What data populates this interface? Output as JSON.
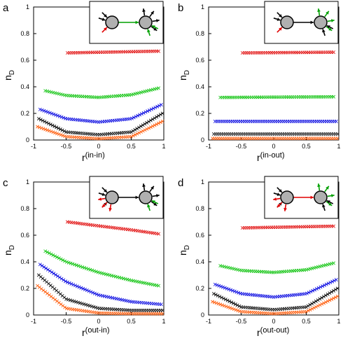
{
  "chart_data": [
    {
      "panel_label": "a",
      "type": "scatter",
      "ylabel": "n",
      "ylabel_sub": "D",
      "xlabel": "r",
      "xlabel_sup": "(in-in)",
      "xlim": [
        -1,
        1
      ],
      "ylim": [
        0,
        1
      ],
      "x_ticks": [
        "-1",
        "-0.5",
        "0",
        "0.5",
        "1"
      ],
      "y_ticks": [
        "0",
        "0.2",
        "0.4",
        "0.6",
        "0.8",
        "1"
      ],
      "series": [
        {
          "color": "#e00000",
          "x": [
            -0.48,
            0.92
          ],
          "y": [
            0.655,
            0.668
          ]
        },
        {
          "color": "#00c000",
          "x": [
            -0.82,
            -0.5,
            0,
            0.5,
            0.92
          ],
          "y": [
            0.37,
            0.335,
            0.32,
            0.34,
            0.39
          ]
        },
        {
          "color": "#0000e0",
          "x": [
            -0.9,
            -0.5,
            0,
            0.5,
            0.96
          ],
          "y": [
            0.23,
            0.16,
            0.135,
            0.16,
            0.265
          ]
        },
        {
          "color": "#000000",
          "x": [
            -0.92,
            -0.5,
            0,
            0.5,
            0.98
          ],
          "y": [
            0.16,
            0.06,
            0.04,
            0.06,
            0.2
          ]
        },
        {
          "color": "#ff5500",
          "x": [
            -0.94,
            -0.5,
            0,
            0.5,
            0.98
          ],
          "y": [
            0.1,
            0.025,
            0.01,
            0.025,
            0.14
          ]
        }
      ],
      "inset": {
        "in_colors": [
          "#e00000",
          "#000000",
          "#000000"
        ],
        "center_color": "#00a000",
        "out_colors": [
          "#000000",
          "#000000",
          "#000000",
          "#000000"
        ],
        "sink_colors": [
          "#00a000",
          "#00a000"
        ]
      }
    },
    {
      "panel_label": "b",
      "type": "scatter",
      "ylabel": "n",
      "ylabel_sub": "D",
      "xlabel": "r",
      "xlabel_sup": "(in-out)",
      "xlim": [
        -1,
        1
      ],
      "ylim": [
        0,
        1
      ],
      "x_ticks": [
        "-1",
        "-0.5",
        "0",
        "0.5",
        "1"
      ],
      "y_ticks": [
        "0",
        "0.2",
        "0.4",
        "0.6",
        "0.8",
        "1"
      ],
      "series": [
        {
          "color": "#e00000",
          "x": [
            -0.48,
            0.92
          ],
          "y": [
            0.655,
            0.66
          ]
        },
        {
          "color": "#00c000",
          "x": [
            -0.82,
            0.92
          ],
          "y": [
            0.32,
            0.325
          ]
        },
        {
          "color": "#0000e0",
          "x": [
            -0.9,
            0.96
          ],
          "y": [
            0.14,
            0.14
          ]
        },
        {
          "color": "#000000",
          "x": [
            -0.92,
            0.98
          ],
          "y": [
            0.045,
            0.045
          ]
        },
        {
          "color": "#ff5500",
          "x": [
            -0.94,
            0.98
          ],
          "y": [
            0.012,
            0.012
          ]
        }
      ],
      "inset": {
        "in_colors": [
          "#e00000",
          "#000000",
          "#000000"
        ],
        "center_color": "#000000",
        "out_colors": [
          "#00a000",
          "#00a000",
          "#00a000",
          "#00a000"
        ],
        "sink_colors": [
          "#000000",
          "#000000"
        ]
      }
    },
    {
      "panel_label": "c",
      "type": "scatter",
      "ylabel": "n",
      "ylabel_sub": "D",
      "xlabel": "r",
      "xlabel_sup": "(out-in)",
      "xlim": [
        -1,
        1
      ],
      "ylim": [
        0,
        1
      ],
      "x_ticks": [
        "-1",
        "-0.5",
        "0",
        "0.5",
        "1"
      ],
      "y_ticks": [
        "0",
        "0.2",
        "0.4",
        "0.6",
        "0.8",
        "1"
      ],
      "series": [
        {
          "color": "#e00000",
          "x": [
            -0.48,
            0,
            0.5,
            0.92
          ],
          "y": [
            0.7,
            0.67,
            0.64,
            0.61
          ]
        },
        {
          "color": "#00c000",
          "x": [
            -0.82,
            -0.5,
            0,
            0.5,
            0.92
          ],
          "y": [
            0.48,
            0.4,
            0.32,
            0.26,
            0.22
          ]
        },
        {
          "color": "#0000e0",
          "x": [
            -0.9,
            -0.5,
            0,
            0.5,
            0.96
          ],
          "y": [
            0.38,
            0.25,
            0.15,
            0.1,
            0.08
          ]
        },
        {
          "color": "#000000",
          "x": [
            -0.92,
            -0.5,
            0,
            0.5,
            0.98
          ],
          "y": [
            0.3,
            0.12,
            0.05,
            0.035,
            0.035
          ]
        },
        {
          "color": "#ff5500",
          "x": [
            -0.94,
            -0.5,
            0,
            0.5,
            0.98
          ],
          "y": [
            0.22,
            0.05,
            0.015,
            0.01,
            0.01
          ]
        }
      ],
      "inset": {
        "in_colors": [
          "#000000",
          "#000000",
          "#000000"
        ],
        "center_color": "#000000",
        "out_colors": [
          "#000000",
          "#000000",
          "#000000",
          "#000000"
        ],
        "sink_colors": [
          "#00a000",
          "#00a000"
        ],
        "source_out_colors": [
          "#e00000",
          "#e00000",
          "#e00000"
        ]
      }
    },
    {
      "panel_label": "d",
      "type": "scatter",
      "ylabel": "n",
      "ylabel_sub": "D",
      "xlabel": "r",
      "xlabel_sup": "(out-out)",
      "xlim": [
        -1,
        1
      ],
      "ylim": [
        0,
        1
      ],
      "x_ticks": [
        "-1",
        "-0.5",
        "0",
        "0.5",
        "1"
      ],
      "y_ticks": [
        "0",
        "0.2",
        "0.4",
        "0.6",
        "0.8",
        "1"
      ],
      "series": [
        {
          "color": "#e00000",
          "x": [
            -0.48,
            0.92
          ],
          "y": [
            0.655,
            0.668
          ]
        },
        {
          "color": "#00c000",
          "x": [
            -0.82,
            -0.5,
            0,
            0.5,
            0.92
          ],
          "y": [
            0.37,
            0.335,
            0.32,
            0.34,
            0.39
          ]
        },
        {
          "color": "#0000e0",
          "x": [
            -0.9,
            -0.5,
            0,
            0.5,
            0.96
          ],
          "y": [
            0.23,
            0.16,
            0.135,
            0.16,
            0.265
          ]
        },
        {
          "color": "#000000",
          "x": [
            -0.92,
            -0.5,
            0,
            0.5,
            0.98
          ],
          "y": [
            0.16,
            0.06,
            0.04,
            0.06,
            0.2
          ]
        },
        {
          "color": "#ff5500",
          "x": [
            -0.94,
            -0.5,
            0,
            0.5,
            0.98
          ],
          "y": [
            0.1,
            0.025,
            0.01,
            0.025,
            0.14
          ]
        }
      ],
      "inset": {
        "in_colors": [
          "#000000",
          "#000000",
          "#000000"
        ],
        "center_color": "#e00000",
        "out_colors": [
          "#00a000",
          "#00a000",
          "#00a000",
          "#00a000"
        ],
        "sink_colors": [
          "#000000",
          "#000000"
        ],
        "source_out_colors": [
          "#e00000",
          "#e00000",
          "#e00000"
        ]
      }
    }
  ]
}
